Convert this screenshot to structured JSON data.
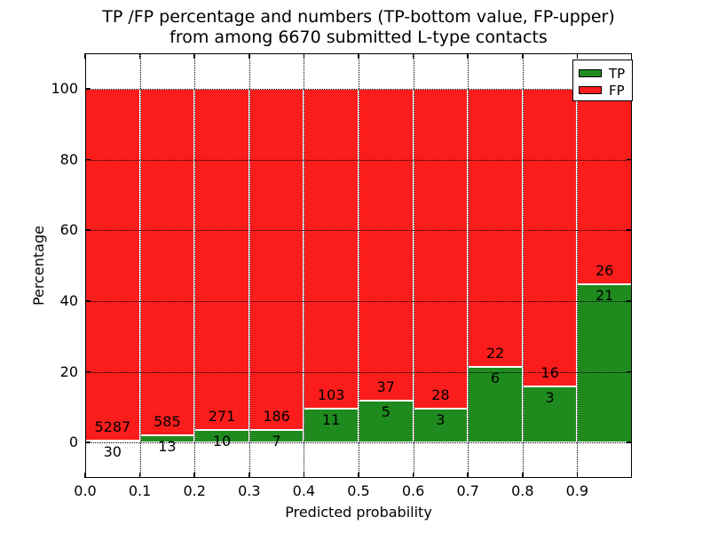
{
  "title": {
    "line1": "TP /FP percentage and numbers (TP-bottom value, FP-upper)",
    "line2": "from among 6670 submitted L-type contacts"
  },
  "axes": {
    "xlabel": "Predicted probability",
    "ylabel": "Percentage",
    "x_tick_labels": [
      "0.0",
      "0.1",
      "0.2",
      "0.3",
      "0.4",
      "0.5",
      "0.6",
      "0.7",
      "0.8",
      "0.9"
    ],
    "y_tick_labels": [
      "0",
      "20",
      "40",
      "60",
      "80",
      "100"
    ],
    "y_tick_values": [
      0,
      20,
      40,
      60,
      80,
      100
    ]
  },
  "legend": {
    "position": "upper right",
    "entries": [
      {
        "label": "TP",
        "color": "#1f8b1f"
      },
      {
        "label": "FP",
        "color": "#fb1c1c"
      }
    ]
  },
  "chart_data": {
    "type": "bar",
    "stacked": true,
    "title": "TP /FP percentage and numbers (TP-bottom value, FP-upper) from among 6670 submitted L-type contacts",
    "xlabel": "Predicted probability",
    "ylabel": "Percentage",
    "xlim": [
      0.0,
      1.0
    ],
    "ylim": [
      -10,
      110
    ],
    "grid": "dotted, on x ticks and y ticks",
    "legend_position": "upper right",
    "total_contacts": 6670,
    "bin_edges": [
      0.0,
      0.1,
      0.2,
      0.3,
      0.4,
      0.5,
      0.6,
      0.7,
      0.8,
      0.9,
      1.0
    ],
    "bin_labels": [
      "0.0-0.1",
      "0.1-0.2",
      "0.2-0.3",
      "0.3-0.4",
      "0.4-0.5",
      "0.5-0.6",
      "0.6-0.7",
      "0.7-0.8",
      "0.8-0.9",
      "0.9-1.0"
    ],
    "series": [
      {
        "name": "TP",
        "color": "#1f8b1f",
        "counts": [
          30,
          13,
          10,
          7,
          11,
          5,
          3,
          6,
          3,
          21
        ]
      },
      {
        "name": "FP",
        "color": "#fb1c1c",
        "counts": [
          5287,
          585,
          271,
          186,
          103,
          37,
          28,
          22,
          16,
          26
        ]
      }
    ],
    "tp_percent_of_bin": [
      0.56,
      2.17,
      3.56,
      3.63,
      9.65,
      11.9,
      9.68,
      21.43,
      15.79,
      44.68
    ],
    "fp_percent_of_bin": [
      99.44,
      97.83,
      96.44,
      96.37,
      90.35,
      88.1,
      90.32,
      78.57,
      84.21,
      55.32
    ],
    "bars_sum_to": 100
  }
}
